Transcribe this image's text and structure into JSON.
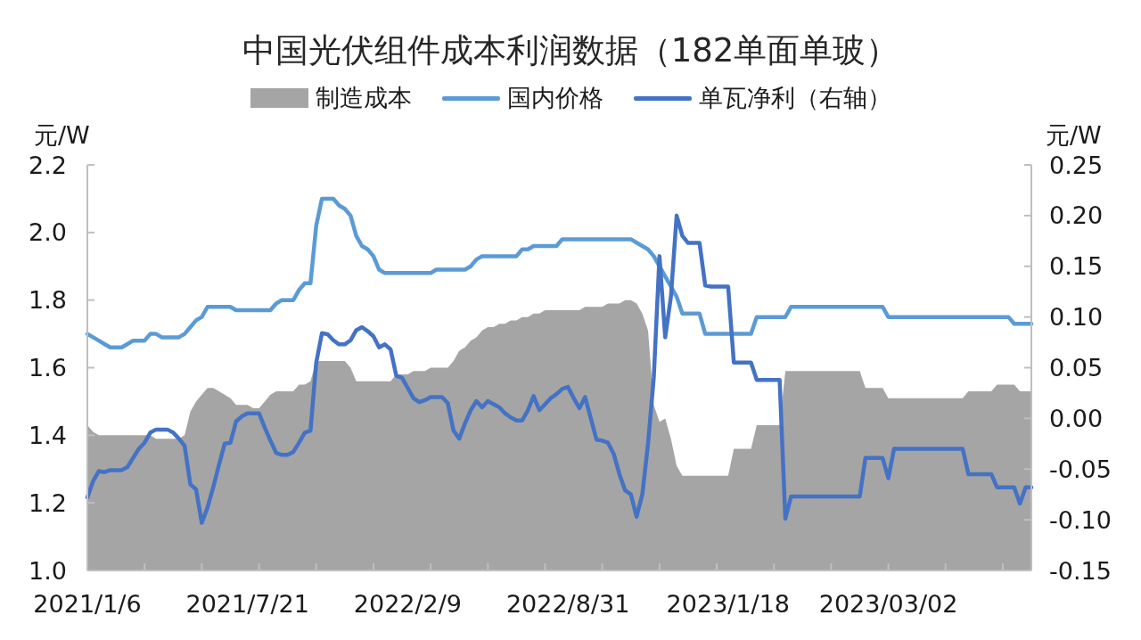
{
  "chart_data": {
    "type": "line",
    "title": "中国光伏组件成本利润数据（182单面单玻）",
    "ylabel": "元/W",
    "y2label": "元/W",
    "legend": "top",
    "categories": [
      "2021/1/6",
      null,
      null,
      null,
      null,
      null,
      null,
      null,
      null,
      null,
      null,
      null,
      null,
      null,
      null,
      null,
      null,
      null,
      null,
      null,
      null,
      null,
      null,
      null,
      null,
      null,
      null,
      null,
      "2021/7/21",
      null,
      null,
      null,
      null,
      null,
      null,
      null,
      null,
      null,
      null,
      null,
      null,
      null,
      null,
      null,
      null,
      null,
      null,
      null,
      null,
      null,
      null,
      null,
      null,
      null,
      null,
      null,
      "2022/2/9",
      null,
      null,
      null,
      null,
      null,
      null,
      null,
      null,
      null,
      null,
      null,
      null,
      null,
      null,
      null,
      null,
      null,
      null,
      null,
      null,
      null,
      null,
      null,
      null,
      null,
      null,
      null,
      "2022/8/31",
      null,
      null,
      null,
      null,
      null,
      null,
      null,
      null,
      null,
      null,
      null,
      null,
      null,
      null,
      null,
      null,
      null,
      null,
      null,
      null,
      null,
      null,
      null,
      null,
      null,
      null,
      null,
      "2023/1/18",
      null,
      null,
      null,
      null,
      null,
      null,
      null,
      null,
      null,
      null,
      null,
      null,
      null,
      null,
      null,
      null,
      null,
      null,
      null,
      null,
      null,
      null,
      null,
      null,
      null,
      null,
      null,
      "2023/03/02",
      null,
      null,
      null,
      null,
      null,
      null,
      null,
      null,
      null,
      null,
      null,
      null,
      null,
      null,
      null,
      null,
      null,
      null,
      null,
      null,
      null,
      null,
      null,
      null,
      null
    ],
    "series": [
      {
        "name": "制造成本",
        "type": "area",
        "color": "#a5a5a5",
        "values": [
          1.43,
          1.41,
          1.4,
          1.4,
          1.4,
          1.4,
          1.4,
          1.4,
          1.4,
          1.4,
          1.4,
          1.4,
          1.39,
          1.39,
          1.39,
          1.39,
          1.39,
          1.4,
          1.47,
          1.5,
          1.52,
          1.54,
          1.54,
          1.53,
          1.52,
          1.51,
          1.49,
          1.49,
          1.49,
          1.48,
          1.48,
          1.5,
          1.52,
          1.53,
          1.53,
          1.53,
          1.53,
          1.55,
          1.55,
          1.56,
          1.62,
          1.62,
          1.62,
          1.62,
          1.62,
          1.62,
          1.6,
          1.56,
          1.56,
          1.56,
          1.56,
          1.56,
          1.56,
          1.56,
          1.58,
          1.58,
          1.58,
          1.59,
          1.59,
          1.59,
          1.6,
          1.6,
          1.6,
          1.6,
          1.62,
          1.65,
          1.66,
          1.68,
          1.69,
          1.71,
          1.72,
          1.72,
          1.73,
          1.73,
          1.74,
          1.74,
          1.75,
          1.75,
          1.76,
          1.76,
          1.77,
          1.77,
          1.77,
          1.77,
          1.77,
          1.77,
          1.77,
          1.78,
          1.78,
          1.78,
          1.78,
          1.79,
          1.79,
          1.79,
          1.8,
          1.8,
          1.79,
          1.76,
          1.71,
          1.49,
          1.44,
          1.45,
          1.39,
          1.31,
          1.28,
          1.28,
          1.28,
          1.28,
          1.28,
          1.28,
          1.28,
          1.28,
          1.28,
          1.36,
          1.36,
          1.36,
          1.36,
          1.43,
          1.43,
          1.43,
          1.43,
          1.43,
          1.59,
          1.59,
          1.59,
          1.59,
          1.59,
          1.59,
          1.59,
          1.59,
          1.59,
          1.59,
          1.59,
          1.59,
          1.59,
          1.59,
          1.54,
          1.54,
          1.54,
          1.54,
          1.51,
          1.51,
          1.51,
          1.51,
          1.51,
          1.51,
          1.51,
          1.51,
          1.51,
          1.51,
          1.51,
          1.51,
          1.51,
          1.51,
          1.53,
          1.53,
          1.53,
          1.53,
          1.53,
          1.55,
          1.55,
          1.55,
          1.55,
          1.53,
          1.53,
          1.53
        ]
      },
      {
        "name": "国内价格",
        "color": "#5b9bd5",
        "values": [
          1.7,
          1.69,
          1.68,
          1.67,
          1.66,
          1.66,
          1.66,
          1.67,
          1.68,
          1.68,
          1.68,
          1.7,
          1.7,
          1.69,
          1.69,
          1.69,
          1.69,
          1.7,
          1.72,
          1.74,
          1.75,
          1.78,
          1.78,
          1.78,
          1.78,
          1.78,
          1.77,
          1.77,
          1.77,
          1.77,
          1.77,
          1.77,
          1.77,
          1.79,
          1.8,
          1.8,
          1.8,
          1.83,
          1.85,
          1.85,
          2.02,
          2.1,
          2.1,
          2.1,
          2.08,
          2.07,
          2.05,
          1.99,
          1.96,
          1.95,
          1.93,
          1.89,
          1.88,
          1.88,
          1.88,
          1.88,
          1.88,
          1.88,
          1.88,
          1.88,
          1.88,
          1.89,
          1.89,
          1.89,
          1.89,
          1.89,
          1.89,
          1.9,
          1.92,
          1.93,
          1.93,
          1.93,
          1.93,
          1.93,
          1.93,
          1.93,
          1.95,
          1.95,
          1.96,
          1.96,
          1.96,
          1.96,
          1.96,
          1.98,
          1.98,
          1.98,
          1.98,
          1.98,
          1.98,
          1.98,
          1.98,
          1.98,
          1.98,
          1.98,
          1.98,
          1.98,
          1.97,
          1.96,
          1.95,
          1.93,
          1.9,
          1.87,
          1.84,
          1.81,
          1.76,
          1.76,
          1.76,
          1.76,
          1.7,
          1.7,
          1.7,
          1.7,
          1.7,
          1.7,
          1.7,
          1.7,
          1.7,
          1.75,
          1.75,
          1.75,
          1.75,
          1.75,
          1.75,
          1.78,
          1.78,
          1.78,
          1.78,
          1.78,
          1.78,
          1.78,
          1.78,
          1.78,
          1.78,
          1.78,
          1.78,
          1.78,
          1.78,
          1.78,
          1.78,
          1.78,
          1.75,
          1.75,
          1.75,
          1.75,
          1.75,
          1.75,
          1.75,
          1.75,
          1.75,
          1.75,
          1.75,
          1.75,
          1.75,
          1.75,
          1.75,
          1.75,
          1.75,
          1.75,
          1.75,
          1.75,
          1.75,
          1.75,
          1.73,
          1.73,
          1.73,
          1.73
        ]
      },
      {
        "name": "单瓦净利（右轴）",
        "axis": "y2",
        "color": "#4472c4",
        "values": [
          -0.078,
          -0.062,
          -0.052,
          -0.053,
          -0.051,
          -0.051,
          -0.051,
          -0.048,
          -0.039,
          -0.03,
          -0.024,
          -0.014,
          -0.011,
          -0.011,
          -0.011,
          -0.014,
          -0.02,
          -0.027,
          -0.065,
          -0.07,
          -0.103,
          -0.088,
          -0.068,
          -0.046,
          -0.025,
          -0.024,
          -0.003,
          0.002,
          0.005,
          0.005,
          0.005,
          -0.009,
          -0.022,
          -0.034,
          -0.036,
          -0.036,
          -0.033,
          -0.024,
          -0.014,
          -0.012,
          0.055,
          0.084,
          0.083,
          0.077,
          0.073,
          0.073,
          0.077,
          0.087,
          0.09,
          0.086,
          0.081,
          0.07,
          0.073,
          0.068,
          0.042,
          0.04,
          0.03,
          0.02,
          0.016,
          0.018,
          0.021,
          0.021,
          0.021,
          0.015,
          -0.012,
          -0.02,
          -0.005,
          0.008,
          0.017,
          0.011,
          0.017,
          0.014,
          0.011,
          0.005,
          0.001,
          -0.002,
          -0.002,
          0.008,
          0.022,
          0.008,
          0.014,
          0.02,
          0.024,
          0.029,
          0.031,
          0.02,
          0.01,
          0.021,
          0.0,
          -0.021,
          -0.022,
          -0.024,
          -0.035,
          -0.055,
          -0.071,
          -0.075,
          -0.097,
          -0.075,
          -0.025,
          0.04,
          0.16,
          0.08,
          0.12,
          0.2,
          0.18,
          0.173,
          0.173,
          0.173,
          0.131,
          0.13,
          0.13,
          0.13,
          0.13,
          0.055,
          0.055,
          0.055,
          0.055,
          0.038,
          0.038,
          0.038,
          0.038,
          0.038,
          -0.099,
          -0.077,
          -0.077,
          -0.077,
          -0.077,
          -0.077,
          -0.077,
          -0.077,
          -0.077,
          -0.077,
          -0.077,
          -0.077,
          -0.077,
          -0.077,
          -0.039,
          -0.039,
          -0.039,
          -0.039,
          -0.059,
          -0.03,
          -0.03,
          -0.03,
          -0.03,
          -0.03,
          -0.03,
          -0.03,
          -0.03,
          -0.03,
          -0.03,
          -0.03,
          -0.03,
          -0.03,
          -0.055,
          -0.055,
          -0.055,
          -0.055,
          -0.055,
          -0.068,
          -0.068,
          -0.068,
          -0.068,
          -0.084,
          -0.068,
          -0.068
        ]
      }
    ],
    "ylim": [
      1.0,
      2.2
    ],
    "yticks": [
      {
        "value": 1.0,
        "label": "1.0"
      },
      1.2,
      1.4,
      1.6,
      1.8,
      {
        "value": 2.0,
        "label": "2.0"
      },
      2.2
    ],
    "y2lim": [
      -0.15,
      0.25
    ],
    "y2ticks": [
      -0.15,
      {
        "value": -0.1,
        "label": "-0.10"
      },
      -0.05,
      {
        "value": 0,
        "label": "0.00"
      },
      0.05,
      {
        "value": 0.1,
        "label": "0.10"
      },
      0.15,
      {
        "value": 0.2,
        "label": "0.20"
      },
      0.25
    ]
  }
}
